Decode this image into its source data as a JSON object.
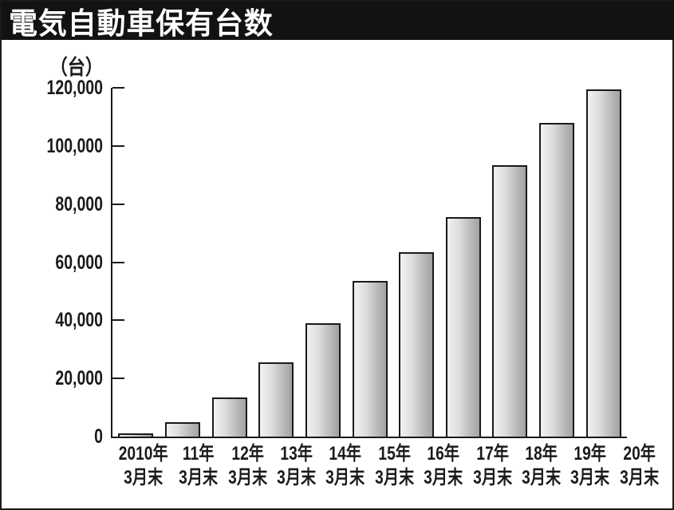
{
  "window": {
    "title": "電気自動車保有台数"
  },
  "chart_data": {
    "type": "bar",
    "title": "電気自動車保有台数",
    "unit_label": "（台）",
    "xlabel": "",
    "ylabel": "（台）",
    "categories": [
      [
        "2010年",
        "3月末"
      ],
      [
        "11年",
        "3月末"
      ],
      [
        "12年",
        "3月末"
      ],
      [
        "13年",
        "3月末"
      ],
      [
        "14年",
        "3月末"
      ],
      [
        "15年",
        "3月末"
      ],
      [
        "16年",
        "3月末"
      ],
      [
        "17年",
        "3月末"
      ],
      [
        "18年",
        "3月末"
      ],
      [
        "19年",
        "3月末"
      ],
      [
        "20年",
        "3月末"
      ]
    ],
    "values": [
      1000,
      5000,
      13500,
      25500,
      39000,
      53500,
      63500,
      75500,
      93500,
      108000,
      119500
    ],
    "ylim": [
      0,
      120000
    ],
    "ytick_interval": 20000,
    "ytick_labels": [
      "0",
      "20,000",
      "40,000",
      "60,000",
      "80,000",
      "100,000",
      "120,000"
    ],
    "grid": false,
    "legend": "none"
  },
  "colors": {
    "banner_bg": "#121212",
    "banner_text": "#ffffff",
    "axis": "#1a1a1a",
    "bar_fill_light": "#f1f1f1",
    "bar_fill_dark": "#a2a2a2",
    "bar_border": "#1a1a1a",
    "background": "#ffffff"
  }
}
